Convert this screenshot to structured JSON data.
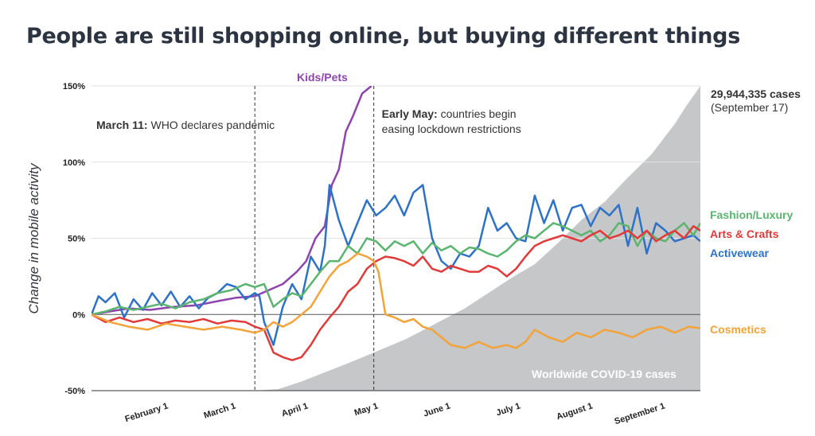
{
  "title": "People are still shopping online, but buying different things",
  "chart_data": {
    "type": "line",
    "ylabel": "Change in mobile activity",
    "y_ticks": [
      "150%",
      "100%",
      "50%",
      "0%",
      "-50%"
    ],
    "y_tick_values": [
      150,
      100,
      50,
      0,
      -50
    ],
    "ylim": [
      -50,
      150
    ],
    "x_ticks": [
      "February 1",
      "March 1",
      "April 1",
      "May 1",
      "June 1",
      "July 1",
      "August 1",
      "September 1"
    ],
    "x_tick_days": [
      31,
      60,
      91,
      121,
      152,
      182,
      213,
      244
    ],
    "xlim_days": [
      0,
      261
    ],
    "events": [
      {
        "day": 70,
        "label_bold": "March 11:",
        "label_text": " WHO declares pandemic"
      },
      {
        "day": 121,
        "label_bold": "Early May:",
        "label_text": " countries begin",
        "label_text2": "easing lockdown restrictions"
      }
    ],
    "cases": {
      "label": "Worldwide COVID-19 cases",
      "max_label": "29,944,335 cases",
      "max_sub": "(September 17)",
      "color": "#c6c7c9",
      "x": [
        70,
        80,
        90,
        100,
        110,
        121,
        135,
        150,
        160,
        170,
        180,
        190,
        200,
        210,
        220,
        230,
        240,
        250,
        255,
        261
      ],
      "y": [
        -50,
        -49,
        -44,
        -38,
        -32,
        -25,
        -16,
        -4,
        4,
        14,
        24,
        33,
        47,
        62,
        74,
        90,
        105,
        125,
        137,
        150
      ]
    },
    "series": [
      {
        "name": "Kids/Pets",
        "color": "#8e44ad",
        "x": [
          0,
          8,
          16,
          25,
          35,
          45,
          55,
          62,
          70,
          76,
          82,
          88,
          92,
          96,
          100,
          103,
          106,
          109,
          112,
          116,
          120
        ],
        "y": [
          0,
          2,
          4,
          3,
          5,
          6,
          9,
          11,
          12,
          16,
          20,
          28,
          35,
          50,
          58,
          85,
          95,
          120,
          130,
          145,
          150
        ]
      },
      {
        "name": "Activewear",
        "color": "#2e72c8",
        "x": [
          0,
          3,
          6,
          10,
          14,
          18,
          22,
          26,
          30,
          34,
          38,
          42,
          46,
          50,
          54,
          58,
          62,
          66,
          70,
          72,
          74,
          78,
          82,
          86,
          90,
          94,
          98,
          100,
          102,
          106,
          110,
          114,
          118,
          122,
          126,
          130,
          134,
          138,
          142,
          146,
          150,
          154,
          158,
          162,
          166,
          170,
          174,
          178,
          182,
          186,
          190,
          194,
          198,
          202,
          206,
          210,
          214,
          218,
          222,
          226,
          230,
          234,
          238,
          242,
          246,
          250,
          254,
          258,
          261
        ],
        "y": [
          0,
          12,
          8,
          14,
          -2,
          10,
          3,
          14,
          6,
          15,
          5,
          12,
          4,
          11,
          14,
          20,
          18,
          10,
          14,
          12,
          -5,
          -20,
          5,
          20,
          10,
          38,
          28,
          45,
          85,
          62,
          45,
          60,
          75,
          65,
          70,
          78,
          65,
          80,
          85,
          50,
          35,
          30,
          40,
          38,
          45,
          70,
          55,
          60,
          50,
          48,
          78,
          60,
          75,
          55,
          70,
          72,
          58,
          70,
          65,
          72,
          45,
          70,
          40,
          60,
          55,
          48,
          50,
          52,
          48
        ]
      },
      {
        "name": "Fashion/Luxury",
        "color": "#5bb46f",
        "x": [
          0,
          6,
          12,
          18,
          24,
          30,
          36,
          42,
          48,
          54,
          60,
          66,
          70,
          74,
          78,
          82,
          86,
          90,
          94,
          98,
          102,
          106,
          110,
          114,
          118,
          122,
          126,
          130,
          134,
          138,
          142,
          146,
          150,
          154,
          158,
          162,
          166,
          170,
          174,
          178,
          182,
          186,
          190,
          194,
          198,
          202,
          206,
          210,
          214,
          218,
          222,
          226,
          230,
          234,
          238,
          242,
          246,
          250,
          254,
          258,
          261
        ],
        "y": [
          0,
          2,
          5,
          3,
          5,
          7,
          4,
          8,
          10,
          14,
          16,
          20,
          18,
          20,
          5,
          10,
          14,
          12,
          20,
          28,
          35,
          35,
          45,
          40,
          50,
          48,
          42,
          48,
          45,
          48,
          40,
          47,
          42,
          45,
          40,
          44,
          43,
          40,
          38,
          42,
          48,
          52,
          50,
          55,
          60,
          58,
          55,
          52,
          55,
          48,
          52,
          60,
          58,
          45,
          55,
          50,
          48,
          55,
          60,
          52,
          60
        ]
      },
      {
        "name": "Arts & Crafts",
        "color": "#e03a3a",
        "x": [
          0,
          6,
          12,
          18,
          24,
          30,
          36,
          42,
          48,
          54,
          60,
          66,
          70,
          74,
          78,
          82,
          86,
          90,
          94,
          98,
          102,
          106,
          110,
          114,
          118,
          122,
          126,
          130,
          134,
          138,
          142,
          146,
          150,
          154,
          158,
          162,
          166,
          170,
          174,
          178,
          182,
          186,
          190,
          194,
          198,
          202,
          206,
          210,
          214,
          218,
          222,
          226,
          230,
          234,
          238,
          242,
          246,
          250,
          254,
          258,
          261
        ],
        "y": [
          0,
          -5,
          -2,
          -5,
          -3,
          -6,
          -4,
          -5,
          -3,
          -6,
          -4,
          -5,
          -8,
          -10,
          -25,
          -28,
          -30,
          -28,
          -20,
          -10,
          -2,
          5,
          15,
          20,
          30,
          35,
          38,
          37,
          35,
          32,
          38,
          30,
          28,
          32,
          30,
          28,
          28,
          32,
          30,
          25,
          30,
          38,
          45,
          48,
          50,
          52,
          50,
          48,
          52,
          55,
          50,
          52,
          55,
          50,
          55,
          48,
          52,
          55,
          50,
          58,
          55
        ]
      },
      {
        "name": "Cosmetics",
        "color": "#f2a33a",
        "x": [
          0,
          8,
          16,
          24,
          32,
          40,
          48,
          56,
          64,
          70,
          74,
          78,
          82,
          86,
          90,
          94,
          98,
          102,
          106,
          110,
          114,
          118,
          121,
          123,
          126,
          130,
          134,
          138,
          142,
          146,
          150,
          154,
          160,
          166,
          172,
          178,
          182,
          186,
          190,
          196,
          202,
          208,
          214,
          220,
          226,
          232,
          238,
          244,
          250,
          256,
          261
        ],
        "y": [
          0,
          -5,
          -8,
          -10,
          -6,
          -8,
          -10,
          -8,
          -10,
          -12,
          -10,
          -5,
          -8,
          -5,
          0,
          5,
          15,
          25,
          32,
          35,
          40,
          38,
          35,
          28,
          0,
          -2,
          -5,
          -3,
          -8,
          -10,
          -15,
          -20,
          -22,
          -18,
          -22,
          -20,
          -22,
          -18,
          -10,
          -15,
          -18,
          -12,
          -15,
          -10,
          -12,
          -15,
          -10,
          -8,
          -12,
          -8,
          -9
        ]
      }
    ],
    "series_labels": [
      "Fashion/Luxury",
      "Arts & Crafts",
      "Activewear",
      "Cosmetics"
    ]
  }
}
